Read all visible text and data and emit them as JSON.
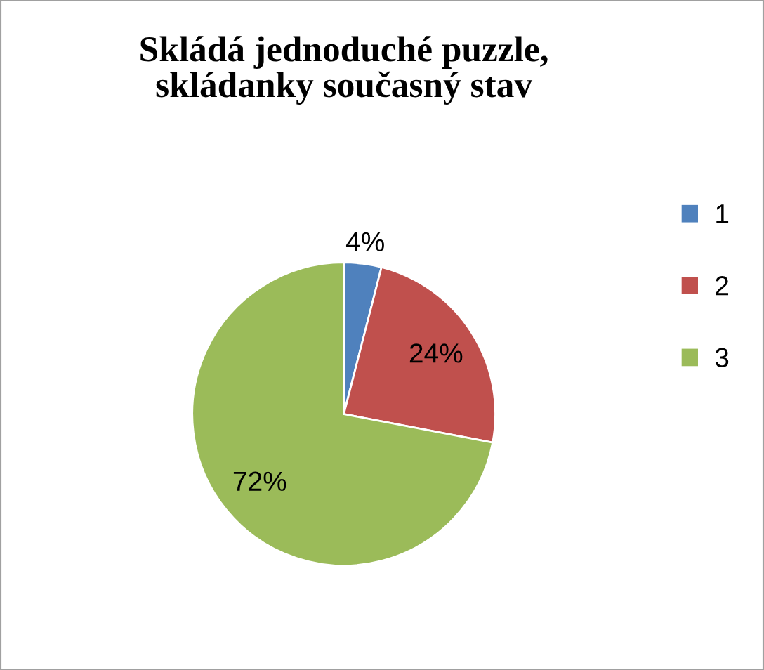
{
  "chart_data": {
    "type": "pie",
    "title": "Skládá jednoduché puzzle, skládanky současný stav",
    "categories": [
      "1",
      "2",
      "3"
    ],
    "values": [
      4,
      24,
      72
    ],
    "colors": [
      "#4f81bd",
      "#c0504d",
      "#9bbb59"
    ],
    "value_labels": [
      "4%",
      "24%",
      "72%"
    ],
    "legend": "right"
  }
}
